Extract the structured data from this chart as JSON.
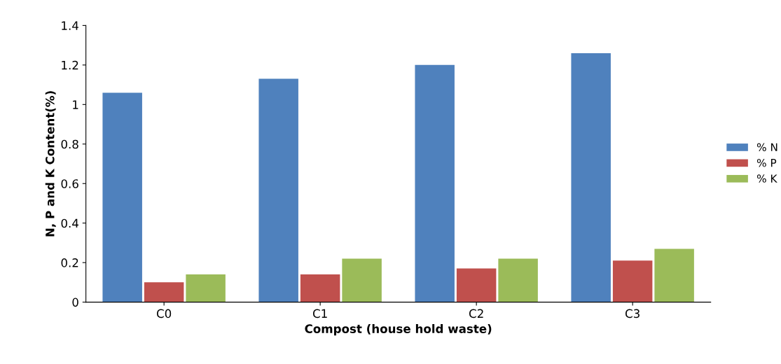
{
  "chart_data": {
    "type": "bar",
    "xlabel": "Compost (house hold waste)",
    "ylabel": "N, P and K Content(%)",
    "categories": [
      "C0",
      "C1",
      "C2",
      "C3"
    ],
    "series": [
      {
        "name": "% N",
        "color": "#4f81bd",
        "values": [
          1.06,
          1.13,
          1.2,
          1.26
        ]
      },
      {
        "name": "% P",
        "color": "#c0504d",
        "values": [
          0.1,
          0.14,
          0.17,
          0.21
        ]
      },
      {
        "name": "% K",
        "color": "#9bbb59",
        "values": [
          0.14,
          0.22,
          0.22,
          0.27
        ]
      }
    ],
    "ylim": [
      0,
      1.4
    ],
    "yticks": [
      0,
      0.2,
      0.4,
      0.6,
      0.8,
      1,
      1.2,
      1.4
    ],
    "grid": false,
    "legend": "right"
  }
}
